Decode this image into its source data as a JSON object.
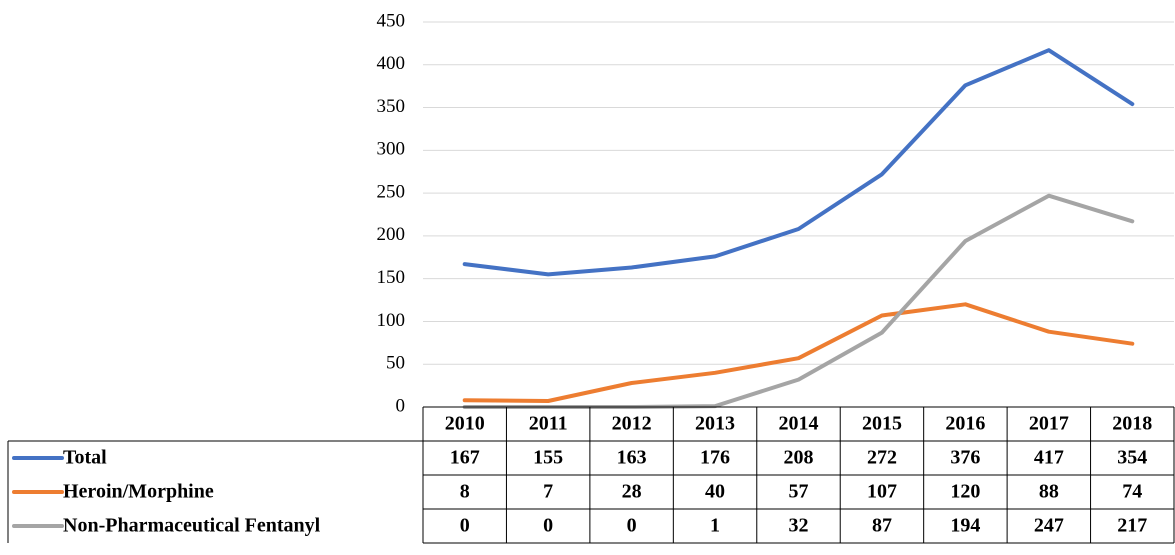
{
  "chart_data": {
    "type": "line",
    "categories": [
      "2010",
      "2011",
      "2012",
      "2013",
      "2014",
      "2015",
      "2016",
      "2017",
      "2018"
    ],
    "series": [
      {
        "name": "Total",
        "color": "#4472c4",
        "values": [
          167,
          155,
          163,
          176,
          208,
          272,
          376,
          417,
          354
        ]
      },
      {
        "name": "Heroin/Morphine",
        "color": "#ed7d31",
        "values": [
          8,
          7,
          28,
          40,
          57,
          107,
          120,
          88,
          74
        ]
      },
      {
        "name": "Non-Pharmaceutical Fentanyl",
        "color": "#a5a5a5",
        "values": [
          0,
          0,
          0,
          1,
          32,
          87,
          194,
          247,
          217
        ]
      }
    ],
    "ylim": [
      0,
      450
    ],
    "yticks": [
      0,
      50,
      100,
      150,
      200,
      250,
      300,
      350,
      400,
      450
    ],
    "grid": true,
    "data_table": true
  }
}
